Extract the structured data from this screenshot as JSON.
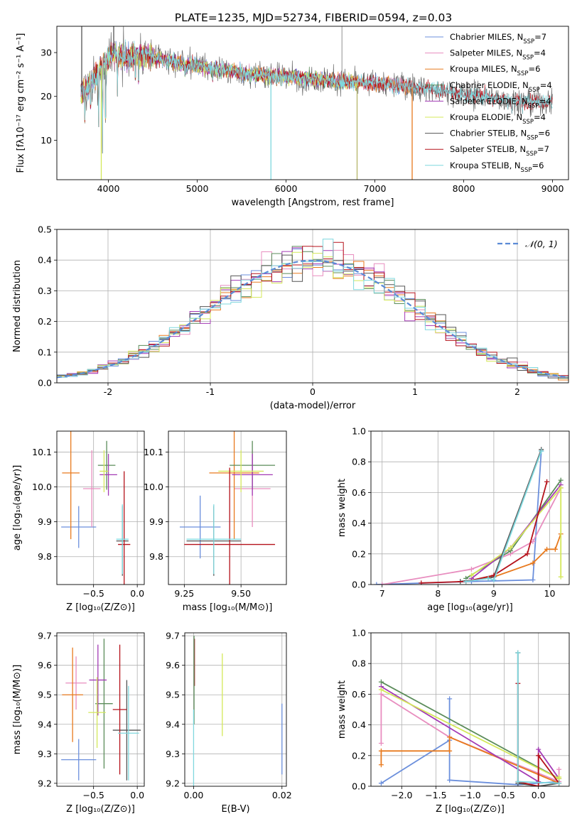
{
  "figure_title": "PLATE=1235, MJD=52734, FIBERID=0594, z=0.03",
  "colors": {
    "Chabrier MILES": "#6b8fdc",
    "Salpeter MILES": "#e88dbf",
    "Kroupa MILES": "#e87a1e",
    "Chabrier ELODIE": "#5b8c5a",
    "Salpeter ELODIE": "#a33ab5",
    "Kroupa ELODIE": "#d4e85a",
    "Chabrier STELIB": "#555555",
    "Salpeter STELIB": "#b5121b",
    "Kroupa STELIB": "#7fd8de"
  },
  "chart_data": [
    {
      "id": "spectrum",
      "type": "line",
      "title": "",
      "xlabel": "wavelength [Angstrom, rest frame]",
      "ylabel": "Flux [fλ10⁻¹⁷ erg cm⁻² s⁻¹ A⁻¹]",
      "xlim": [
        3420,
        9180
      ],
      "ylim": [
        1,
        36
      ],
      "xticks": [
        4000,
        5000,
        6000,
        7000,
        8000,
        9000
      ],
      "yticks": [
        10,
        20,
        30
      ],
      "grid": false,
      "legend_position": "top-right",
      "legend": [
        {
          "name": "Chabrier MILES",
          "n": "7"
        },
        {
          "name": "Salpeter MILES",
          "n": "4"
        },
        {
          "name": "Kroupa MILES",
          "n": "6"
        },
        {
          "name": "Chabrier ELODIE",
          "n": "4"
        },
        {
          "name": "Salpeter ELODIE",
          "n": "4"
        },
        {
          "name": "Kroupa ELODIE",
          "n": "4"
        },
        {
          "name": "Chabrier STELIB",
          "n": "6"
        },
        {
          "name": "Salpeter STELIB",
          "n": "7"
        },
        {
          "name": "Kroupa STELIB",
          "n": "6"
        }
      ],
      "continuum": [
        [
          3700,
          21
        ],
        [
          3800,
          23
        ],
        [
          3900,
          26
        ],
        [
          3980,
          28
        ],
        [
          4050,
          30
        ],
        [
          4200,
          29
        ],
        [
          4400,
          29.5
        ],
        [
          4600,
          28.5
        ],
        [
          4800,
          27.5
        ],
        [
          5000,
          27
        ],
        [
          5300,
          26
        ],
        [
          5600,
          25
        ],
        [
          6000,
          24.5
        ],
        [
          6300,
          24
        ],
        [
          6600,
          23.5
        ],
        [
          7000,
          23
        ],
        [
          7300,
          22.5
        ],
        [
          7600,
          21.8
        ],
        [
          8000,
          20.5
        ],
        [
          8400,
          19.5
        ],
        [
          8700,
          18.8
        ]
      ],
      "absorption_lines": [
        [
          3735,
          13
        ],
        [
          3800,
          15
        ],
        [
          3890,
          13
        ],
        [
          3934,
          7
        ],
        [
          3968,
          9
        ],
        [
          4102,
          20
        ],
        [
          4304,
          22
        ],
        [
          4340,
          21
        ],
        [
          4861,
          24
        ],
        [
          5175,
          23
        ],
        [
          5270,
          24
        ],
        [
          5893,
          22
        ],
        [
          6563,
          21
        ],
        [
          8498,
          17
        ],
        [
          8542,
          16
        ],
        [
          8662,
          16
        ]
      ],
      "spikes": [
        [
          5830,
          1,
          "#7fd8de"
        ],
        [
          6800,
          1,
          "#b5b56a"
        ],
        [
          7420,
          1,
          "#e87a1e"
        ],
        [
          6630,
          36,
          "#aaaaaa"
        ],
        [
          3700,
          36,
          "#555555"
        ],
        [
          4060,
          36,
          "#555555"
        ],
        [
          3920,
          1,
          "#d4e85a"
        ]
      ],
      "series_end": {
        "MILES": 7400,
        "ELODIE": 6800,
        "STELIB": 9000
      }
    },
    {
      "id": "residual-hist",
      "type": "bar",
      "title": "",
      "xlabel": "(data-model)/error",
      "ylabel": "Normed distribution",
      "xlim": [
        -2.5,
        2.5
      ],
      "ylim": [
        0,
        0.5
      ],
      "xticks": [
        -2,
        -1,
        0,
        1,
        2
      ],
      "yticks": [
        0.0,
        0.1,
        0.2,
        0.3,
        0.4,
        0.5
      ],
      "grid": true,
      "legend_position": "top-right",
      "legend": [
        {
          "name": "𝒩(0, 1)"
        }
      ],
      "bin_width": 0.1
    },
    {
      "id": "age-vs-metallicity",
      "type": "scatter",
      "title": "",
      "xlabel": "Z [log₁₀(Z/Z⊙)]",
      "ylabel": "age  [log₁₀(age/yr)]",
      "xlim": [
        -0.92,
        0.08
      ],
      "ylim": [
        9.72,
        10.16
      ],
      "xticks": [
        -0.5,
        0.0
      ],
      "xticklabels": [
        "−0.5",
        "0.0"
      ],
      "yticks": [
        9.8,
        9.9,
        10.0,
        10.1
      ],
      "grid": true,
      "points": [
        {
          "name": "Chabrier MILES",
          "x": -0.67,
          "y": 9.885,
          "ex": 0.2,
          "ey": 0.06
        },
        {
          "name": "Salpeter MILES",
          "x": -0.52,
          "y": 9.995,
          "ex": 0.1,
          "ey": 0.11
        },
        {
          "name": "Kroupa MILES",
          "x": -0.76,
          "y": 10.04,
          "ex": 0.1,
          "ey": 0.19
        },
        {
          "name": "Chabrier ELODIE",
          "x": -0.35,
          "y": 10.062,
          "ex": 0.1,
          "ey": 0.07
        },
        {
          "name": "Salpeter ELODIE",
          "x": -0.33,
          "y": 10.035,
          "ex": 0.1,
          "ey": 0.06
        },
        {
          "name": "Kroupa ELODIE",
          "x": -0.38,
          "y": 10.045,
          "ex": 0.05,
          "ey": 0.06
        },
        {
          "name": "Chabrier STELIB",
          "x": -0.17,
          "y": 9.845,
          "ex": 0.07,
          "ey": 0.1
        },
        {
          "name": "Salpeter STELIB",
          "x": -0.15,
          "y": 9.835,
          "ex": 0.07,
          "ey": 0.21
        },
        {
          "name": "Kroupa STELIB",
          "x": -0.17,
          "y": 9.85,
          "ex": 0.07,
          "ey": 0.1
        }
      ]
    },
    {
      "id": "age-vs-mass",
      "type": "scatter",
      "title": "",
      "xlabel": "mass [log₁₀(M/M⊙)]",
      "ylabel": "",
      "xlim": [
        9.18,
        9.7
      ],
      "ylim": [
        9.72,
        10.16
      ],
      "xticks": [
        9.25,
        9.5
      ],
      "xticklabels": [
        "9.25",
        "9.50"
      ],
      "yticks": [
        9.8,
        9.9,
        10.0,
        10.1
      ],
      "grid": true,
      "points": [
        {
          "name": "Chabrier MILES",
          "x": 9.32,
          "y": 9.885,
          "ex": 0.09,
          "ey": 0.09
        },
        {
          "name": "Salpeter MILES",
          "x": 9.55,
          "y": 9.995,
          "ex": 0.08,
          "ey": 0.11
        },
        {
          "name": "Kroupa MILES",
          "x": 9.47,
          "y": 10.04,
          "ex": 0.11,
          "ey": 0.19
        },
        {
          "name": "Chabrier ELODIE",
          "x": 9.55,
          "y": 10.062,
          "ex": 0.1,
          "ey": 0.07
        },
        {
          "name": "Salpeter ELODIE",
          "x": 9.55,
          "y": 10.035,
          "ex": 0.09,
          "ey": 0.06
        },
        {
          "name": "Kroupa ELODIE",
          "x": 9.5,
          "y": 10.045,
          "ex": 0.1,
          "ey": 0.06
        },
        {
          "name": "Chabrier STELIB",
          "x": 9.38,
          "y": 9.845,
          "ex": 0.12,
          "ey": 0.1
        },
        {
          "name": "Salpeter STELIB",
          "x": 9.45,
          "y": 9.835,
          "ex": 0.2,
          "ey": 0.22
        },
        {
          "name": "Kroupa STELIB",
          "x": 9.38,
          "y": 9.85,
          "ex": 0.12,
          "ey": 0.1
        }
      ]
    },
    {
      "id": "mass-weight-vs-age",
      "type": "line",
      "title": "",
      "xlabel": "age  [log₁₀(age/yr)]",
      "ylabel": "mass weight",
      "xlim": [
        6.8,
        10.35
      ],
      "ylim": [
        0,
        1.0
      ],
      "xticks": [
        7,
        8,
        9,
        10
      ],
      "yticks": [
        0.0,
        0.2,
        0.4,
        0.6,
        0.8,
        1.0
      ],
      "grid": true,
      "series": [
        {
          "name": "Chabrier MILES",
          "x": [
            6.9,
            8.6,
            9.7,
            9.85
          ],
          "y": [
            0.0,
            0.02,
            0.03,
            0.87
          ]
        },
        {
          "name": "Salpeter MILES",
          "x": [
            7.0,
            8.6,
            9.3,
            9.7,
            10.2
          ],
          "y": [
            0.0,
            0.1,
            0.2,
            0.28,
            0.63
          ]
        },
        {
          "name": "Kroupa MILES",
          "x": [
            8.5,
            9.0,
            9.7,
            9.95,
            10.1,
            10.2
          ],
          "y": [
            0.02,
            0.05,
            0.14,
            0.23,
            0.23,
            0.33
          ]
        },
        {
          "name": "Chabrier ELODIE",
          "x": [
            8.5,
            9.3,
            10.2
          ],
          "y": [
            0.04,
            0.22,
            0.68
          ]
        },
        {
          "name": "Salpeter ELODIE",
          "x": [
            8.6,
            9.3,
            10.2
          ],
          "y": [
            0.04,
            0.24,
            0.65
          ]
        },
        {
          "name": "Kroupa ELODIE",
          "x": [
            8.6,
            9.3,
            10.2,
            10.2
          ],
          "y": [
            0.06,
            0.24,
            0.63,
            0.05
          ]
        },
        {
          "name": "Chabrier STELIB",
          "x": [
            8.4,
            8.9,
            9.0,
            9.85
          ],
          "y": [
            0.02,
            0.04,
            0.05,
            0.88
          ]
        },
        {
          "name": "Salpeter STELIB",
          "x": [
            7.7,
            8.5,
            9.0,
            9.6,
            9.95
          ],
          "y": [
            0.01,
            0.02,
            0.06,
            0.2,
            0.67
          ]
        },
        {
          "name": "Kroupa STELIB",
          "x": [
            8.5,
            8.9,
            9.0,
            9.85
          ],
          "y": [
            0.02,
            0.04,
            0.03,
            0.87
          ]
        }
      ]
    },
    {
      "id": "mass-vs-metallicity",
      "type": "scatter",
      "title": "",
      "xlabel": "Z [log₁₀(Z/Z⊙)]",
      "ylabel": "mass [log₁₀(M/M⊙)]",
      "xlim": [
        -0.92,
        0.08
      ],
      "ylim": [
        9.19,
        9.71
      ],
      "xticks": [
        -0.5,
        0.0
      ],
      "xticklabels": [
        "−0.5",
        "0.0"
      ],
      "yticks": [
        9.2,
        9.3,
        9.4,
        9.5,
        9.6,
        9.7
      ],
      "grid": true,
      "points": [
        {
          "name": "Chabrier MILES",
          "x": -0.67,
          "y": 9.28,
          "ex": 0.2,
          "ey": 0.07
        },
        {
          "name": "Salpeter MILES",
          "x": -0.7,
          "y": 9.54,
          "ex": 0.12,
          "ey": 0.09
        },
        {
          "name": "Kroupa MILES",
          "x": -0.74,
          "y": 9.5,
          "ex": 0.12,
          "ey": 0.16
        },
        {
          "name": "Chabrier ELODIE",
          "x": -0.38,
          "y": 9.47,
          "ex": 0.1,
          "ey": 0.22
        },
        {
          "name": "Salpeter ELODIE",
          "x": -0.45,
          "y": 9.55,
          "ex": 0.1,
          "ey": 0.12
        },
        {
          "name": "Kroupa ELODIE",
          "x": -0.46,
          "y": 9.44,
          "ex": 0.1,
          "ey": 0.12
        },
        {
          "name": "Chabrier STELIB",
          "x": -0.12,
          "y": 9.38,
          "ex": 0.16,
          "ey": 0.17
        },
        {
          "name": "Salpeter STELIB",
          "x": -0.2,
          "y": 9.45,
          "ex": 0.08,
          "ey": 0.22
        },
        {
          "name": "Kroupa STELIB",
          "x": -0.1,
          "y": 9.37,
          "ex": 0.12,
          "ey": 0.16
        }
      ]
    },
    {
      "id": "mass-vs-extinction",
      "type": "scatter",
      "title": "",
      "xlabel": "E(B-V)",
      "ylabel": "",
      "xlim": [
        -0.002,
        0.021
      ],
      "ylim": [
        9.19,
        9.71
      ],
      "xticks": [
        0.0,
        0.02
      ],
      "xticklabels": [
        "0.00",
        "0.02"
      ],
      "yticks": [
        9.2,
        9.3,
        9.4,
        9.5,
        9.6,
        9.7
      ],
      "grid": true,
      "points": [
        {
          "name": "Chabrier MILES",
          "x": 0.02,
          "y": 9.35,
          "ex": 0,
          "ey": 0.12
        },
        {
          "name": "Kroupa ELODIE",
          "x": 0.0065,
          "y": 9.5,
          "ex": 0,
          "ey": 0.14
        },
        {
          "name": "Salpeter STELIB",
          "x": 0.0002,
          "y": 9.61,
          "ex": 0,
          "ey": 0.08
        },
        {
          "name": "Chabrier ELODIE",
          "x": 0.0001,
          "y": 9.55,
          "ex": 0,
          "ey": 0.15
        },
        {
          "name": "Kroupa STELIB",
          "x": 0.0,
          "y": 9.32,
          "ex": 0,
          "ey": 0.13
        }
      ]
    },
    {
      "id": "mass-weight-vs-metallicity",
      "type": "line",
      "title": "",
      "xlabel": "Z [log₁₀(Z/Z⊙)]",
      "ylabel": "mass weight",
      "xlim": [
        -2.45,
        0.45
      ],
      "ylim": [
        0,
        1.0
      ],
      "xticks": [
        -2.0,
        -1.5,
        -1.0,
        -0.5,
        0.0
      ],
      "xticklabels": [
        "−2.0",
        "−1.5",
        "−1.0",
        "−0.5",
        "0.0"
      ],
      "yticks": [
        0.0,
        0.2,
        0.4,
        0.6,
        0.8,
        1.0
      ],
      "grid": true,
      "series": [
        {
          "name": "Chabrier MILES",
          "x": [
            -2.3,
            -1.3,
            -1.3,
            -1.3,
            -0.3,
            0.3
          ],
          "y": [
            0.02,
            0.3,
            0.57,
            0.04,
            0.01,
            0.03
          ]
        },
        {
          "name": "Salpeter MILES",
          "x": [
            -2.3,
            -2.3,
            -1.3,
            0.3,
            0.3
          ],
          "y": [
            0.28,
            0.6,
            0.32,
            0.03,
            0.11
          ]
        },
        {
          "name": "Kroupa MILES",
          "x": [
            -2.3,
            -2.3,
            -1.3,
            -1.3,
            0.3
          ],
          "y": [
            0.14,
            0.23,
            0.23,
            0.32,
            0.02
          ]
        },
        {
          "name": "Chabrier ELODIE",
          "x": [
            -2.3,
            0.3
          ],
          "y": [
            0.68,
            0.05
          ]
        },
        {
          "name": "Salpeter ELODIE",
          "x": [
            -2.3,
            0.0,
            0.0,
            0.3
          ],
          "y": [
            0.65,
            0.03,
            0.24,
            0.05
          ]
        },
        {
          "name": "Kroupa ELODIE",
          "x": [
            -2.3,
            0.3,
            0.3
          ],
          "y": [
            0.63,
            0.05,
            0.06
          ]
        },
        {
          "name": "Chabrier STELIB",
          "x": [
            -0.3,
            -0.3,
            0.0,
            0.3
          ],
          "y": [
            0.87,
            0.02,
            0.0,
            0.02
          ]
        },
        {
          "name": "Salpeter STELIB",
          "x": [
            -0.3,
            -0.3,
            0.0,
            0.0,
            0.3
          ],
          "y": [
            0.67,
            0.03,
            0.0,
            0.2,
            0.02
          ]
        },
        {
          "name": "Kroupa STELIB",
          "x": [
            -0.3,
            -0.3,
            0.3
          ],
          "y": [
            0.87,
            0.03,
            0.02
          ]
        }
      ]
    }
  ]
}
